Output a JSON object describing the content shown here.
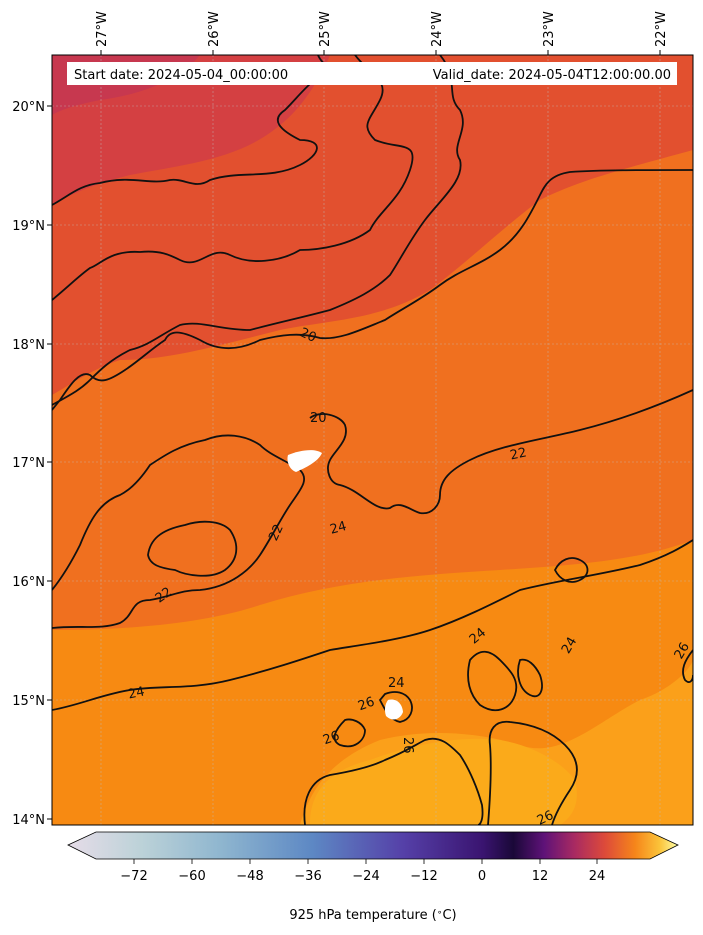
{
  "header": {
    "start_label": "Start date: 2024-05-04_00:00:00",
    "valid_label": "Valid_date: 2024-05-04T12:00:00.00"
  },
  "map": {
    "lon_ticks": [
      "27°W",
      "26°W",
      "25°W",
      "24°W",
      "23°W",
      "22°W"
    ],
    "lat_ticks": [
      "20°N",
      "19°N",
      "18°N",
      "17°N",
      "16°N",
      "15°N",
      "14°N"
    ],
    "contour_labels": [
      "20",
      "20",
      "22",
      "22",
      "22",
      "24",
      "24",
      "24",
      "24",
      "24",
      "26",
      "26",
      "26",
      "26",
      "26"
    ]
  },
  "colorbar": {
    "ticks": [
      "−72",
      "−60",
      "−48",
      "−36",
      "−24",
      "−12",
      "0",
      "12",
      "24"
    ],
    "label": "925 hPa temperature ($^\\circ$C)",
    "label_display": "925 hPa temperature ( ∘C)"
  },
  "colors": {
    "cool": "#c7384f",
    "mid": "#e2502f",
    "warm": "#f0701f",
    "hot": "#f78a12",
    "hotter": "#fbaa1a"
  }
}
